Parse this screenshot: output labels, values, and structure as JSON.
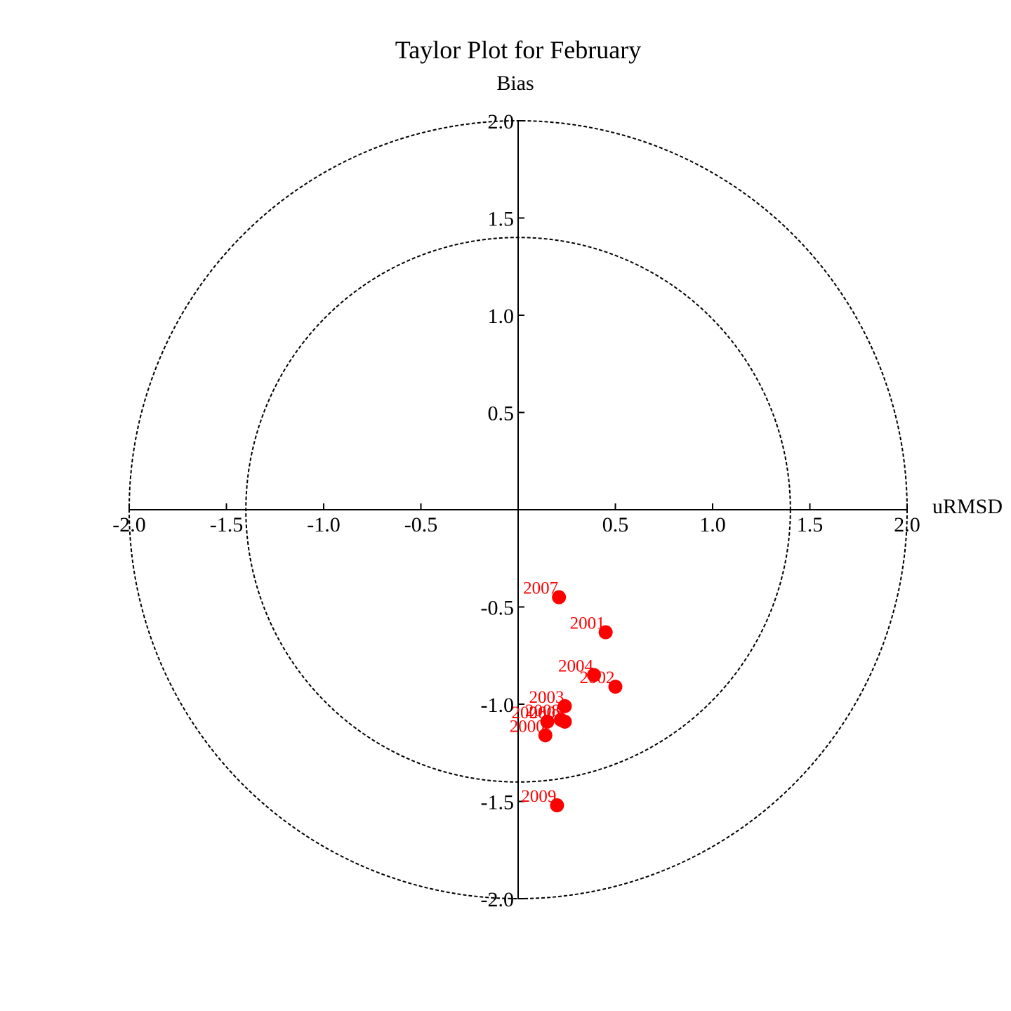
{
  "chart_data": {
    "type": "scatter",
    "title": "Taylor Plot for February",
    "xlabel": "uRMSD",
    "ylabel": "Bias",
    "xlim": [
      -2.0,
      2.0
    ],
    "ylim": [
      -2.0,
      2.0
    ],
    "x_ticks": [
      "-2.0",
      "-1.5",
      "-1.0",
      "-0.5",
      "0.5",
      "1.0",
      "1.5",
      "2.0"
    ],
    "y_ticks": [
      "2.0",
      "1.5",
      "1.0",
      "0.5",
      "-0.5",
      "-1.0",
      "-1.5",
      "-2.0"
    ],
    "reference_circles": [
      1.4,
      2.0
    ],
    "grid": false,
    "marker_color": "#ff0000",
    "points": [
      {
        "label": "2007",
        "x": 0.21,
        "y": -0.45
      },
      {
        "label": "2001",
        "x": 0.45,
        "y": -0.63
      },
      {
        "label": "2004",
        "x": 0.39,
        "y": -0.85
      },
      {
        "label": "2002",
        "x": 0.5,
        "y": -0.91
      },
      {
        "label": "2003",
        "x": 0.24,
        "y": -1.01
      },
      {
        "label": "2005",
        "x": 0.24,
        "y": -1.09
      },
      {
        "label": "2006",
        "x": 0.15,
        "y": -1.09
      },
      {
        "label": "2008",
        "x": 0.22,
        "y": -1.08
      },
      {
        "label": "2000",
        "x": 0.14,
        "y": -1.16
      },
      {
        "label": "2009",
        "x": 0.2,
        "y": -1.52
      }
    ]
  }
}
